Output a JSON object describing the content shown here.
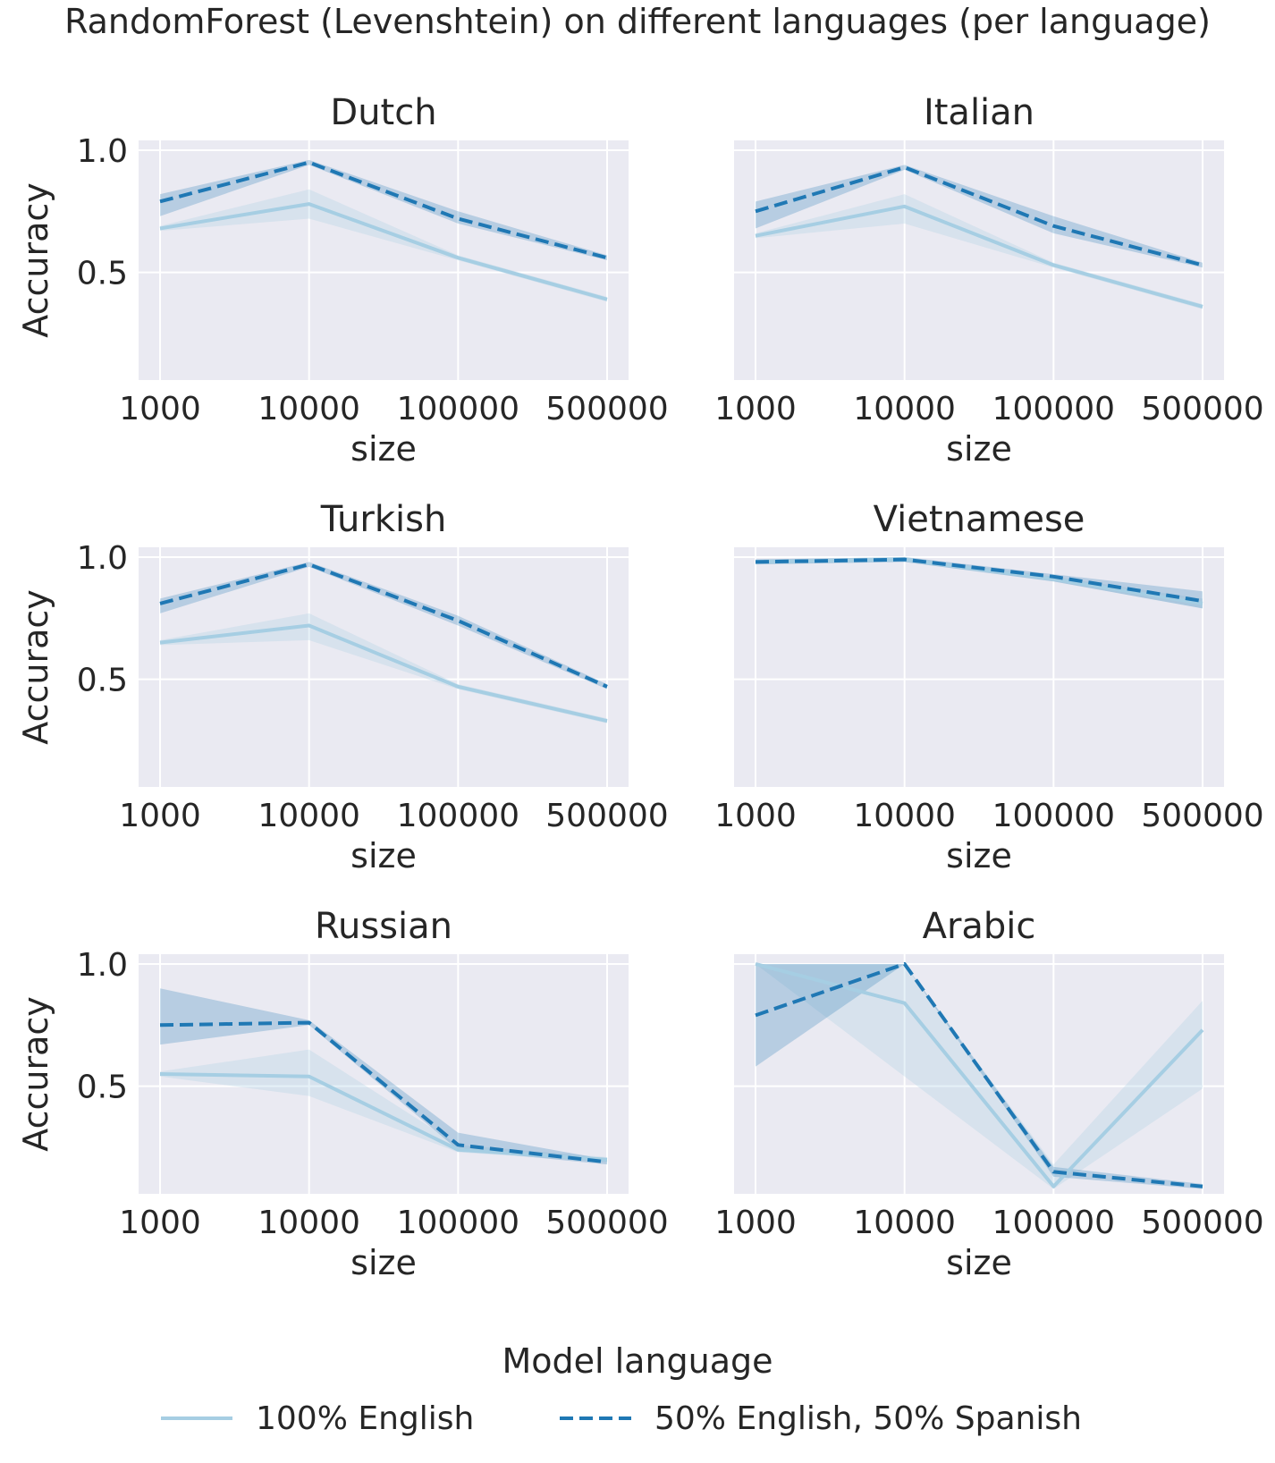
{
  "figure_title": "RandomForest (Levenshtein) on different languages (per language)",
  "legend": {
    "title": "Model language",
    "items": [
      {
        "label": "100% English",
        "color": "#a6cee3",
        "dash": "solid"
      },
      {
        "label": "50% English, 50% Spanish",
        "color": "#1f78b4",
        "dash": "dashed"
      }
    ]
  },
  "colors": {
    "axes_background": "#eaeaf2",
    "grid": "#ffffff",
    "english": "#a6cee3",
    "mixed": "#1f78b4"
  },
  "chart_data": [
    {
      "type": "line",
      "title": "Dutch",
      "xlabel": "size",
      "ylabel": "Accuracy",
      "categories": [
        "1000",
        "10000",
        "100000",
        "500000"
      ],
      "yticks": [
        0.5,
        1.0
      ],
      "ylim": [
        0.06,
        1.04
      ],
      "grid": true,
      "series": [
        {
          "name": "100% English",
          "values": [
            0.68,
            0.78,
            0.56,
            0.39
          ],
          "ci_low": [
            0.67,
            0.72,
            0.55,
            0.38
          ],
          "ci_high": [
            0.69,
            0.84,
            0.57,
            0.4
          ]
        },
        {
          "name": "50% English, 50% Spanish",
          "values": [
            0.79,
            0.95,
            0.72,
            0.56
          ],
          "ci_low": [
            0.73,
            0.94,
            0.7,
            0.55
          ],
          "ci_high": [
            0.82,
            0.96,
            0.75,
            0.57
          ]
        }
      ]
    },
    {
      "type": "line",
      "title": "Italian",
      "xlabel": "size",
      "ylabel": "",
      "categories": [
        "1000",
        "10000",
        "100000",
        "500000"
      ],
      "yticks": [
        0.5,
        1.0
      ],
      "ylim": [
        0.06,
        1.04
      ],
      "grid": true,
      "series": [
        {
          "name": "100% English",
          "values": [
            0.65,
            0.77,
            0.53,
            0.36
          ],
          "ci_low": [
            0.64,
            0.7,
            0.52,
            0.35
          ],
          "ci_high": [
            0.66,
            0.82,
            0.54,
            0.37
          ]
        },
        {
          "name": "50% English, 50% Spanish",
          "values": [
            0.75,
            0.93,
            0.69,
            0.53
          ],
          "ci_low": [
            0.68,
            0.92,
            0.66,
            0.52
          ],
          "ci_high": [
            0.79,
            0.94,
            0.73,
            0.54
          ]
        }
      ]
    },
    {
      "type": "line",
      "title": "Turkish",
      "xlabel": "size",
      "ylabel": "Accuracy",
      "categories": [
        "1000",
        "10000",
        "100000",
        "500000"
      ],
      "yticks": [
        0.5,
        1.0
      ],
      "ylim": [
        0.06,
        1.04
      ],
      "grid": true,
      "series": [
        {
          "name": "100% English",
          "values": [
            0.65,
            0.72,
            0.47,
            0.33
          ],
          "ci_low": [
            0.64,
            0.66,
            0.46,
            0.32
          ],
          "ci_high": [
            0.66,
            0.77,
            0.48,
            0.34
          ]
        },
        {
          "name": "50% English, 50% Spanish",
          "values": [
            0.81,
            0.97,
            0.74,
            0.47
          ],
          "ci_low": [
            0.77,
            0.96,
            0.72,
            0.46
          ],
          "ci_high": [
            0.83,
            0.98,
            0.76,
            0.48
          ]
        }
      ]
    },
    {
      "type": "line",
      "title": "Vietnamese",
      "xlabel": "size",
      "ylabel": "",
      "categories": [
        "1000",
        "10000",
        "100000",
        "500000"
      ],
      "yticks": [
        0.5,
        1.0
      ],
      "ylim": [
        0.06,
        1.04
      ],
      "grid": true,
      "series": [
        {
          "name": "100% English",
          "values": [
            0.98,
            0.99,
            0.91,
            0.81
          ],
          "ci_low": [
            0.97,
            0.98,
            0.9,
            0.79
          ],
          "ci_high": [
            0.99,
            1.0,
            0.92,
            0.83
          ]
        },
        {
          "name": "50% English, 50% Spanish",
          "values": [
            0.98,
            0.99,
            0.92,
            0.82
          ],
          "ci_low": [
            0.97,
            0.98,
            0.9,
            0.79
          ],
          "ci_high": [
            0.99,
            1.0,
            0.93,
            0.86
          ]
        }
      ]
    },
    {
      "type": "line",
      "title": "Russian",
      "xlabel": "size",
      "ylabel": "Accuracy",
      "categories": [
        "1000",
        "10000",
        "100000",
        "500000"
      ],
      "yticks": [
        0.5,
        1.0
      ],
      "ylim": [
        0.06,
        1.04
      ],
      "grid": true,
      "series": [
        {
          "name": "100% English",
          "values": [
            0.55,
            0.54,
            0.24,
            0.2
          ],
          "ci_low": [
            0.54,
            0.46,
            0.23,
            0.19
          ],
          "ci_high": [
            0.56,
            0.65,
            0.26,
            0.21
          ]
        },
        {
          "name": "50% English, 50% Spanish",
          "values": [
            0.75,
            0.76,
            0.26,
            0.19
          ],
          "ci_low": [
            0.67,
            0.75,
            0.24,
            0.18
          ],
          "ci_high": [
            0.9,
            0.77,
            0.31,
            0.2
          ]
        }
      ]
    },
    {
      "type": "line",
      "title": "Arabic",
      "xlabel": "size",
      "ylabel": "",
      "categories": [
        "1000",
        "10000",
        "100000",
        "500000"
      ],
      "yticks": [
        0.5,
        1.0
      ],
      "ylim": [
        0.06,
        1.04
      ],
      "grid": true,
      "series": [
        {
          "name": "100% English",
          "values": [
            1.0,
            0.84,
            0.09,
            0.73
          ],
          "ci_low": [
            1.0,
            0.54,
            0.08,
            0.49
          ],
          "ci_high": [
            1.0,
            1.0,
            0.18,
            0.85
          ]
        },
        {
          "name": "50% English, 50% Spanish",
          "values": [
            0.79,
            1.0,
            0.15,
            0.09
          ],
          "ci_low": [
            0.58,
            1.0,
            0.13,
            0.08
          ],
          "ci_high": [
            1.0,
            1.0,
            0.17,
            0.1
          ]
        }
      ]
    }
  ]
}
